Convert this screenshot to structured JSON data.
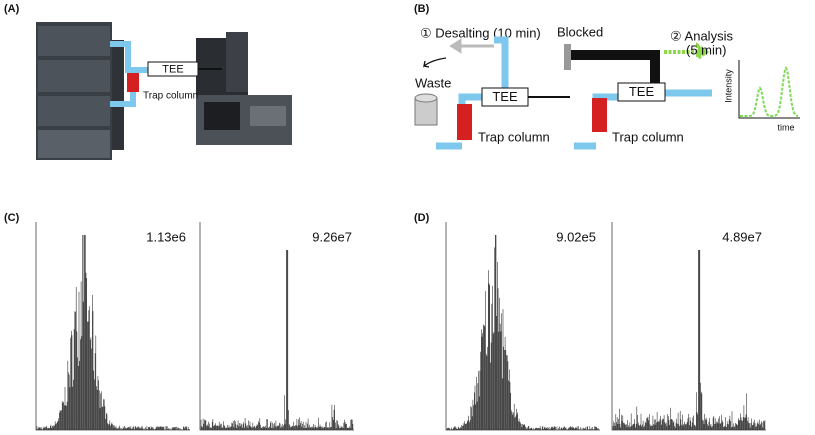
{
  "panels": {
    "a": {
      "label": "(A)",
      "tee": "TEE",
      "trap": "Trap column"
    },
    "b": {
      "label": "(B)",
      "desalting": "① Desalting (10 min)",
      "waste": "Waste",
      "tee_left": "TEE",
      "trap_left": "Trap column",
      "blocked": "Blocked",
      "analysis": [
        "② Analysis",
        "(5 min)"
      ],
      "tee_right": "TEE",
      "trap_right": "Trap column",
      "y_axis": "Intensity",
      "x_axis": "time"
    },
    "c": {
      "label": "(C)",
      "intensities": [
        "1.13e6",
        "9.26e7"
      ]
    },
    "d": {
      "label": "(D)",
      "intensities": [
        "9.02e5",
        "4.89e7"
      ]
    }
  }
}
